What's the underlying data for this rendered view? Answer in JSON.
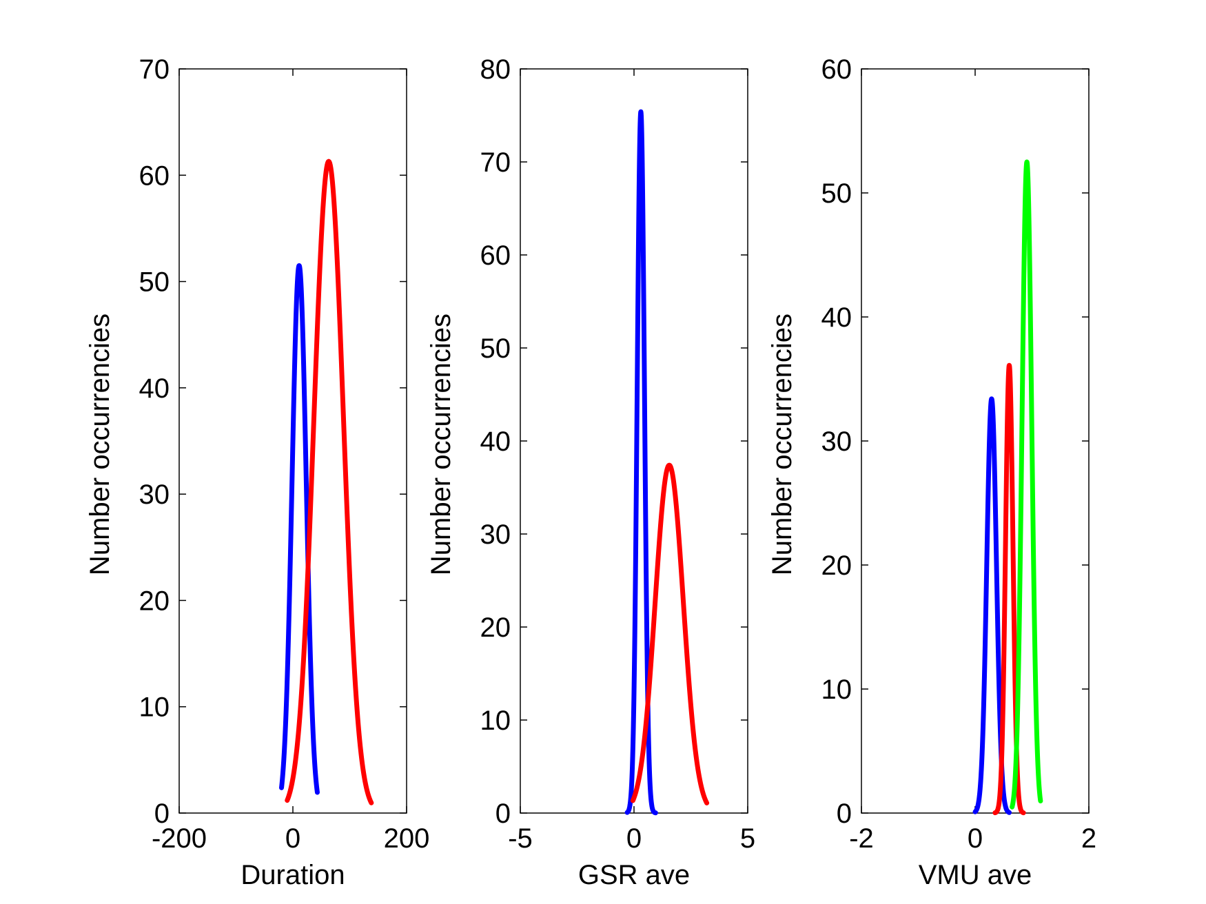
{
  "chart_data": [
    {
      "type": "line",
      "xlabel": "Duration",
      "ylabel": "Number occurrencies",
      "xlim": [
        -200,
        200
      ],
      "ylim": [
        0,
        70
      ],
      "xticks": [
        -200,
        0,
        200
      ],
      "yticks": [
        0,
        10,
        20,
        30,
        40,
        50,
        60,
        70
      ],
      "xtick_labels": [
        "-200",
        "0",
        "200"
      ],
      "ytick_labels": [
        "0",
        "10",
        "20",
        "30",
        "40",
        "50",
        "60",
        "70"
      ],
      "grid": false,
      "series": [
        {
          "color": "#0000ff",
          "mean": 11,
          "sigma": 12.5,
          "peak": 51.5,
          "x_range": [
            -20,
            43
          ]
        },
        {
          "color": "#ff0000",
          "mean": 63,
          "sigma": 26,
          "peak": 61.3,
          "x_range": [
            -10,
            138
          ]
        }
      ]
    },
    {
      "type": "line",
      "xlabel": "GSR ave",
      "ylabel": "Number occurrencies",
      "xlim": [
        -5,
        5
      ],
      "ylim": [
        0,
        80
      ],
      "xticks": [
        -5,
        0,
        5
      ],
      "yticks": [
        0,
        10,
        20,
        30,
        40,
        50,
        60,
        70,
        80
      ],
      "xtick_labels": [
        "-5",
        "0",
        "5"
      ],
      "ytick_labels": [
        "0",
        "10",
        "20",
        "30",
        "40",
        "50",
        "60",
        "70",
        "80"
      ],
      "grid": false,
      "series": [
        {
          "color": "#0000ff",
          "mean": 0.3,
          "sigma": 0.16,
          "peak": 75.4,
          "x_range": [
            -0.3,
            0.95
          ]
        },
        {
          "color": "#ff0000",
          "mean": 1.55,
          "sigma": 0.62,
          "peak": 37.4,
          "x_range": [
            -0.05,
            3.2
          ]
        }
      ]
    },
    {
      "type": "line",
      "xlabel": "VMU ave",
      "ylabel": "Number occurrencies",
      "xlim": [
        -2,
        2
      ],
      "ylim": [
        0,
        60
      ],
      "xticks": [
        -2,
        0,
        2
      ],
      "yticks": [
        0,
        10,
        20,
        30,
        40,
        50,
        60
      ],
      "xtick_labels": [
        "-2",
        "0",
        "2"
      ],
      "ytick_labels": [
        "0",
        "10",
        "20",
        "30",
        "40",
        "50",
        "60"
      ],
      "grid": false,
      "series": [
        {
          "color": "#0000ff",
          "mean": 0.29,
          "sigma": 0.085,
          "peak": 33.4,
          "x_range": [
            0.0,
            0.6
          ]
        },
        {
          "color": "#ff0000",
          "mean": 0.6,
          "sigma": 0.065,
          "peak": 36.1,
          "x_range": [
            0.35,
            0.85
          ]
        },
        {
          "color": "#00ff00",
          "mean": 0.91,
          "sigma": 0.085,
          "peak": 52.5,
          "x_range": [
            0.65,
            1.15
          ]
        }
      ]
    }
  ]
}
